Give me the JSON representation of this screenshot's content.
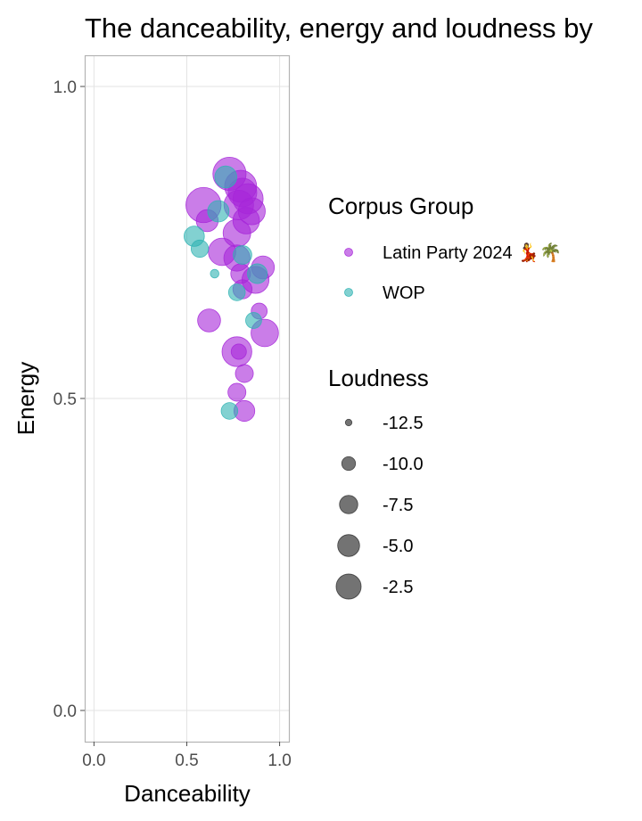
{
  "chart_data": {
    "type": "scatter",
    "title": "The danceability, energy and loudness by",
    "xlabel": "Danceability",
    "ylabel": "Energy",
    "xlim": [
      -0.05,
      1.05
    ],
    "ylim": [
      -0.05,
      1.05
    ],
    "xticks": [
      "0.0",
      "0.5",
      "1.0"
    ],
    "xtick_values": [
      0.0,
      0.5,
      1.0
    ],
    "yticks": [
      "0.0",
      "0.5",
      "1.0"
    ],
    "ytick_values": [
      0.0,
      0.5,
      1.0
    ],
    "grid": true,
    "legend": {
      "placement": "right",
      "color_title": "Corpus Group",
      "size_title": "Loudness",
      "size_breaks": [
        -12.5,
        -10.0,
        -7.5,
        -5.0,
        -2.5
      ],
      "size_labels": [
        "-12.5",
        "-10.0",
        "-7.5",
        "-5.0",
        "-2.5"
      ]
    },
    "series": [
      {
        "name": "Latin Party 2024 💃🌴",
        "color": "#a626d9",
        "points": [
          {
            "x": 0.59,
            "y": 0.81,
            "loudness": -2.3
          },
          {
            "x": 0.73,
            "y": 0.86,
            "loudness": -3.5
          },
          {
            "x": 0.79,
            "y": 0.84,
            "loudness": -4.2
          },
          {
            "x": 0.83,
            "y": 0.82,
            "loudness": -5.2
          },
          {
            "x": 0.78,
            "y": 0.81,
            "loudness": -5.5
          },
          {
            "x": 0.8,
            "y": 0.83,
            "loudness": -6.0
          },
          {
            "x": 0.85,
            "y": 0.8,
            "loudness": -6.8
          },
          {
            "x": 0.82,
            "y": 0.785,
            "loudness": -7.0
          },
          {
            "x": 0.77,
            "y": 0.765,
            "loudness": -6.5
          },
          {
            "x": 0.61,
            "y": 0.785,
            "loudness": -9.0
          },
          {
            "x": 0.69,
            "y": 0.735,
            "loudness": -6.6
          },
          {
            "x": 0.77,
            "y": 0.725,
            "loudness": -7.2
          },
          {
            "x": 0.87,
            "y": 0.69,
            "loudness": -6.8
          },
          {
            "x": 0.91,
            "y": 0.71,
            "loudness": -8.6
          },
          {
            "x": 0.79,
            "y": 0.7,
            "loudness": -9.8
          },
          {
            "x": 0.8,
            "y": 0.675,
            "loudness": -10.0
          },
          {
            "x": 0.62,
            "y": 0.625,
            "loudness": -8.6
          },
          {
            "x": 0.92,
            "y": 0.605,
            "loudness": -6.6
          },
          {
            "x": 0.89,
            "y": 0.64,
            "loudness": -11.0
          },
          {
            "x": 0.77,
            "y": 0.575,
            "loudness": -5.4
          },
          {
            "x": 0.78,
            "y": 0.575,
            "loudness": -11.2
          },
          {
            "x": 0.81,
            "y": 0.54,
            "loudness": -10.4
          },
          {
            "x": 0.77,
            "y": 0.51,
            "loudness": -10.4
          },
          {
            "x": 0.81,
            "y": 0.48,
            "loudness": -9.4
          }
        ]
      },
      {
        "name": "WOP",
        "color": "#2fb3b3",
        "points": [
          {
            "x": 0.71,
            "y": 0.855,
            "loudness": -9.0
          },
          {
            "x": 0.67,
            "y": 0.8,
            "loudness": -9.2
          },
          {
            "x": 0.54,
            "y": 0.76,
            "loudness": -9.6
          },
          {
            "x": 0.57,
            "y": 0.74,
            "loudness": -10.6
          },
          {
            "x": 0.8,
            "y": 0.73,
            "loudness": -10.2
          },
          {
            "x": 0.88,
            "y": 0.7,
            "loudness": -9.8
          },
          {
            "x": 0.65,
            "y": 0.7,
            "loudness": -12.6
          },
          {
            "x": 0.77,
            "y": 0.67,
            "loudness": -10.8
          },
          {
            "x": 0.86,
            "y": 0.625,
            "loudness": -11.0
          },
          {
            "x": 0.73,
            "y": 0.48,
            "loudness": -10.8
          }
        ]
      }
    ]
  }
}
